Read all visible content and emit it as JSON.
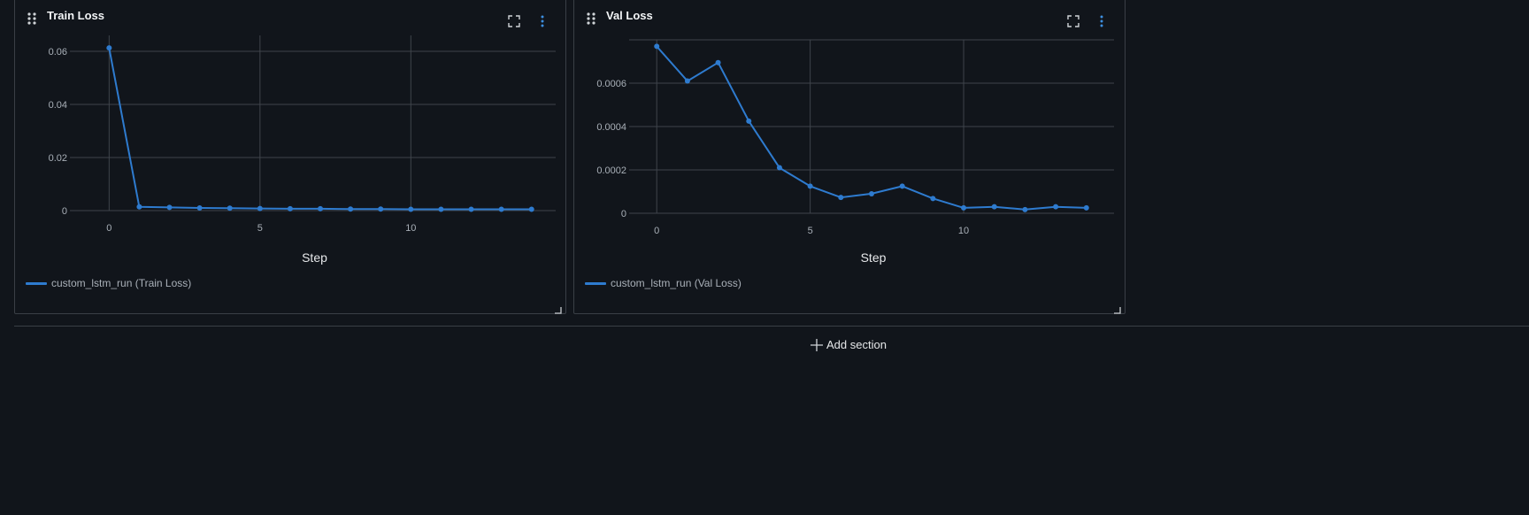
{
  "panels": [
    {
      "title": "Train Loss",
      "legend": "custom_lstm_run (Train Loss)"
    },
    {
      "title": "Val Loss",
      "legend": "custom_lstm_run (Val Loss)"
    }
  ],
  "add_section_label": "Add section",
  "colors": {
    "series": "#2e7bcf",
    "grid": "#3f444b",
    "accent": "#3d8fe0"
  },
  "chart_data": [
    {
      "type": "line",
      "title": "Train Loss",
      "xlabel": "Step",
      "ylabel": "",
      "xlim": [
        -1.3,
        14.8
      ],
      "ylim": [
        0,
        0.066
      ],
      "x_ticks": [
        0,
        5,
        10
      ],
      "y_ticks": [
        0,
        0.02,
        0.04,
        0.06
      ],
      "y_tick_labels": [
        "0",
        "0.02",
        "0.04",
        "0.06"
      ],
      "grid": true,
      "series": [
        {
          "name": "custom_lstm_run (Train Loss)",
          "x": [
            0,
            1,
            2,
            3,
            4,
            5,
            6,
            7,
            8,
            9,
            10,
            11,
            12,
            13,
            14
          ],
          "y": [
            0.0613,
            0.0014,
            0.0012,
            0.001,
            0.0009,
            0.0008,
            0.0007,
            0.0007,
            0.0006,
            0.0006,
            0.0005,
            0.0005,
            0.0005,
            0.0005,
            0.0005
          ]
        }
      ]
    },
    {
      "type": "line",
      "title": "Val Loss",
      "xlabel": "Step",
      "ylabel": "",
      "xlim": [
        -0.9,
        14.9
      ],
      "ylim": [
        0,
        0.0008
      ],
      "x_ticks": [
        0,
        5,
        10
      ],
      "y_ticks": [
        0,
        0.0002,
        0.0004,
        0.0006
      ],
      "y_tick_labels": [
        "0",
        "0.0002",
        "0.0004",
        "0.0006"
      ],
      "grid": true,
      "series": [
        {
          "name": "custom_lstm_run (Val Loss)",
          "x": [
            0,
            1,
            2,
            3,
            4,
            5,
            6,
            7,
            8,
            9,
            10,
            11,
            12,
            13,
            14
          ],
          "y": [
            0.00077,
            0.00061,
            0.000695,
            0.000425,
            0.00021,
            0.000125,
            7.3e-05,
            9e-05,
            0.000125,
            6.8e-05,
            2.5e-05,
            3e-05,
            1.7e-05,
            3e-05,
            2.5e-05
          ]
        }
      ]
    }
  ]
}
